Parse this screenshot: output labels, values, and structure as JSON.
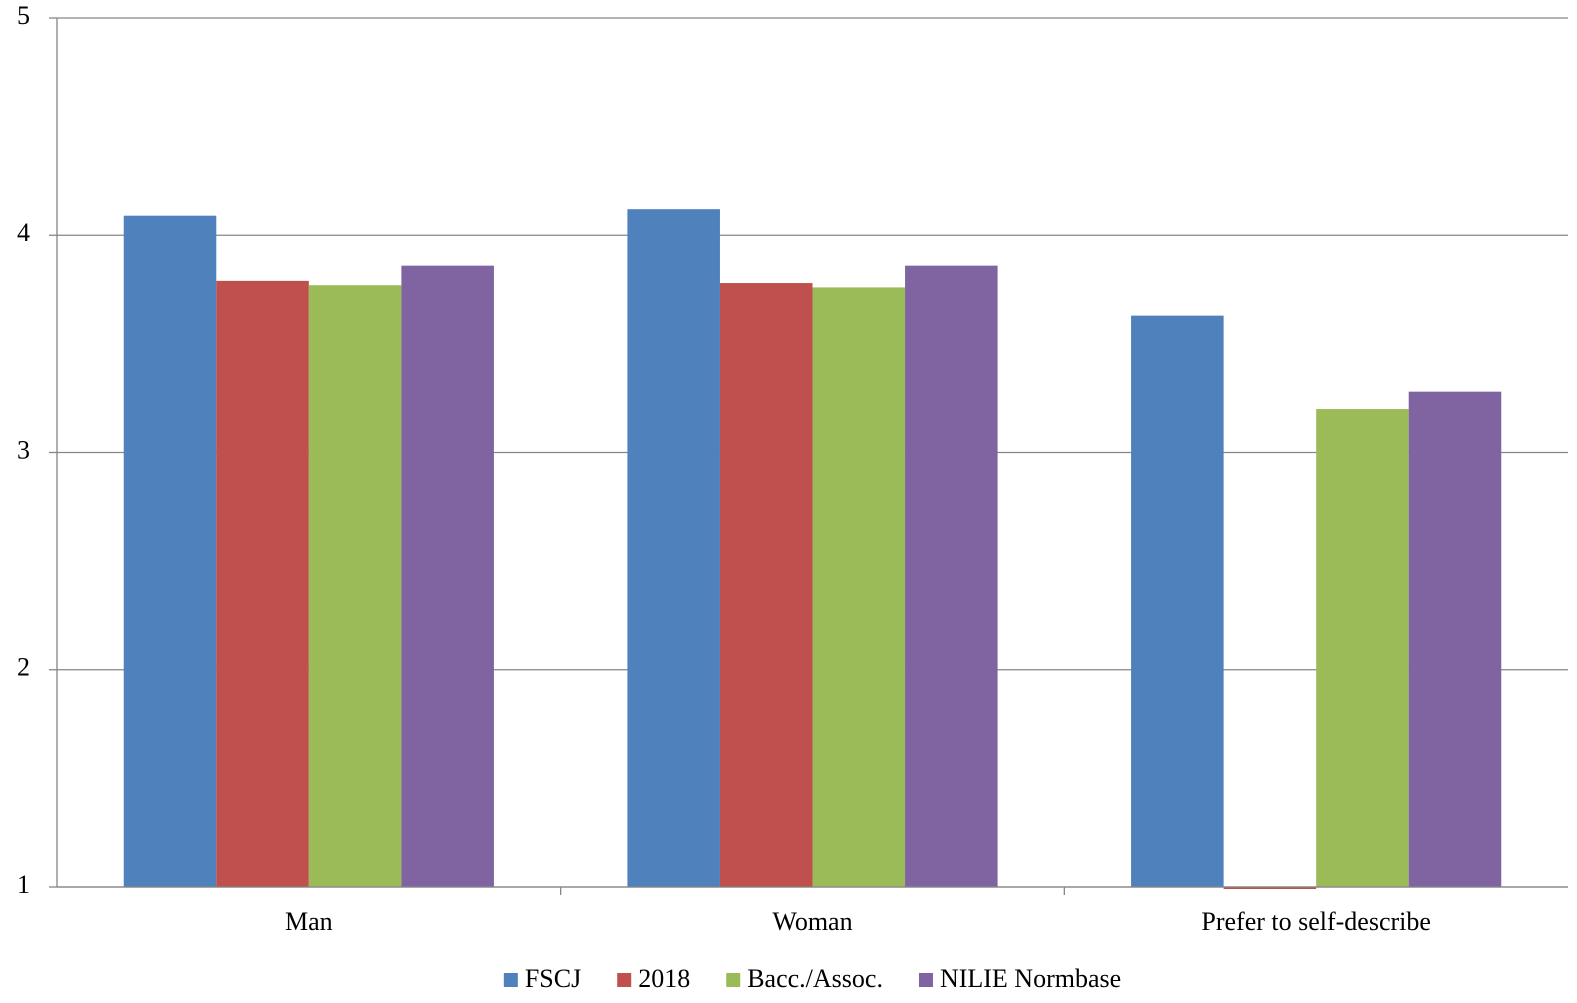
{
  "chart_data": {
    "type": "bar",
    "categories": [
      "Man",
      "Woman",
      "Prefer to self-describe"
    ],
    "series": [
      {
        "name": "FSCJ",
        "color": "#4f81bd",
        "values": [
          4.09,
          4.12,
          3.63
        ]
      },
      {
        "name": "2018",
        "color": "#c0504d",
        "values": [
          3.79,
          3.78,
          1.0
        ]
      },
      {
        "name": "Bacc./Assoc.",
        "color": "#9bbb59",
        "values": [
          3.77,
          3.76,
          3.2
        ]
      },
      {
        "name": "NILIE Normbase",
        "color": "#8064a2",
        "values": [
          3.86,
          3.86,
          3.28
        ]
      }
    ],
    "ylim": [
      1,
      5
    ],
    "yticks": [
      1,
      2,
      3,
      4,
      5
    ],
    "grid": true,
    "legend": "bottom"
  }
}
